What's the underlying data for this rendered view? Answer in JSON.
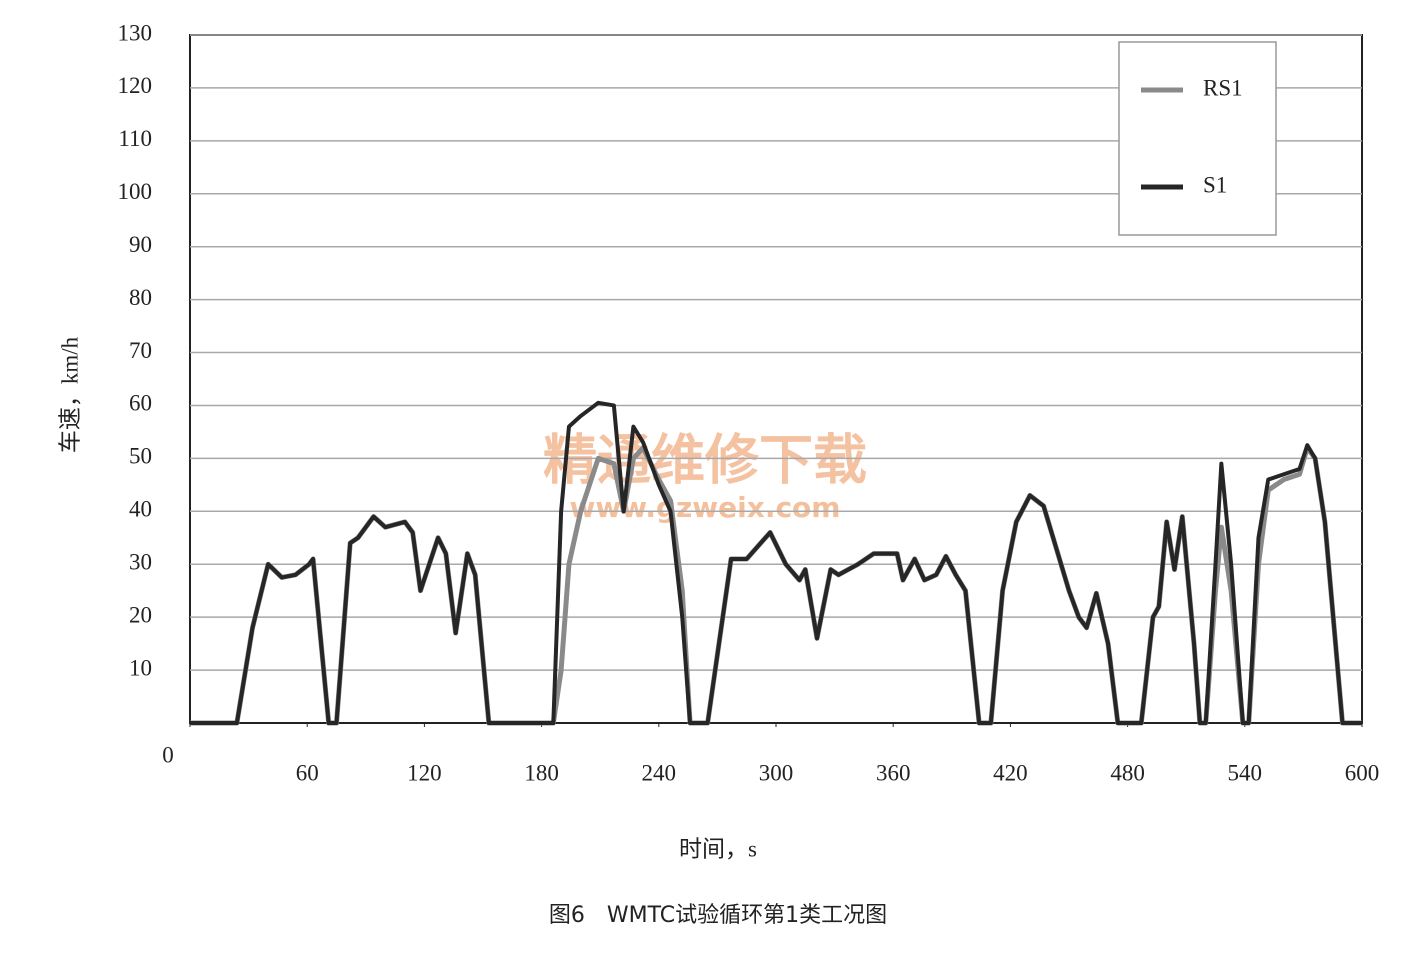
{
  "chart_data": {
    "type": "line",
    "title": "图6　WMTC试验循环第1类工况图",
    "x_label": "时间，s",
    "y_label": "车速，km/h",
    "watermark": [
      "精通维修下载",
      "www.gzweix.com"
    ],
    "xlim": [
      0,
      600
    ],
    "ylim": [
      0,
      130
    ],
    "xticks": [
      0,
      60,
      120,
      180,
      240,
      300,
      360,
      420,
      480,
      540,
      600
    ],
    "yticks": [
      10,
      20,
      30,
      40,
      50,
      60,
      70,
      80,
      90,
      100,
      110,
      120,
      130
    ],
    "grid": true,
    "legend": "upper right",
    "x": [
      0,
      24,
      32,
      40,
      47,
      54,
      61,
      63,
      71,
      75,
      82,
      86,
      94,
      100,
      110,
      114,
      118,
      127,
      131,
      136,
      142,
      146,
      153,
      186,
      190,
      194,
      200,
      209,
      217,
      222,
      227,
      232,
      240,
      246,
      252,
      256,
      265,
      277,
      285,
      297,
      305,
      312,
      315,
      321,
      328,
      332,
      342,
      350,
      362,
      365,
      371,
      376,
      382,
      387,
      392,
      397,
      404,
      410,
      416,
      423,
      430,
      437,
      450,
      455,
      459,
      464,
      470,
      475,
      487,
      493,
      496,
      500,
      504,
      508,
      514,
      517,
      520,
      525,
      528,
      533,
      539,
      542,
      547,
      552,
      560,
      568,
      572,
      576,
      581,
      590,
      600
    ],
    "series": [
      {
        "name": "RS1",
        "color": "#8a8a8a",
        "values": [
          0,
          0,
          18,
          30,
          27.5,
          28,
          30,
          31,
          0,
          0,
          34,
          35,
          39,
          37,
          38,
          36,
          25,
          35,
          32,
          17,
          32,
          28,
          0,
          0,
          10,
          30,
          40,
          50,
          49,
          40,
          50,
          52,
          46,
          42,
          25,
          0,
          0,
          31,
          31,
          36,
          30,
          27,
          29,
          16,
          29,
          28,
          30,
          32,
          32,
          27,
          31,
          27,
          28,
          31.5,
          28,
          25,
          0,
          0,
          25,
          38,
          43,
          41,
          25,
          20,
          18,
          24.5,
          15,
          0,
          0,
          20,
          22,
          38,
          29,
          39,
          15,
          0,
          0,
          25,
          37,
          25,
          0,
          0,
          30,
          44,
          46,
          47,
          52,
          50,
          38,
          0,
          0
        ]
      },
      {
        "name": "S1",
        "color": "#262626",
        "values": [
          0,
          0,
          18,
          30,
          27.5,
          28,
          30,
          31,
          0,
          0,
          34,
          35,
          39,
          37,
          38,
          36,
          25,
          35,
          32,
          17,
          32,
          28,
          0,
          0,
          40,
          56,
          58,
          60.5,
          60,
          40,
          56,
          53,
          45,
          40,
          20,
          0,
          0,
          31,
          31,
          36,
          30,
          27,
          29,
          16,
          29,
          28,
          30,
          32,
          32,
          27,
          31,
          27,
          28,
          31.5,
          28,
          25,
          0,
          0,
          25,
          38,
          43,
          41,
          25,
          20,
          18,
          24.5,
          15,
          0,
          0,
          20,
          22,
          38,
          29,
          39,
          15,
          0,
          0,
          30,
          49,
          30,
          0,
          0,
          35,
          46,
          47,
          48,
          52.5,
          50,
          38,
          0,
          0
        ]
      }
    ]
  }
}
